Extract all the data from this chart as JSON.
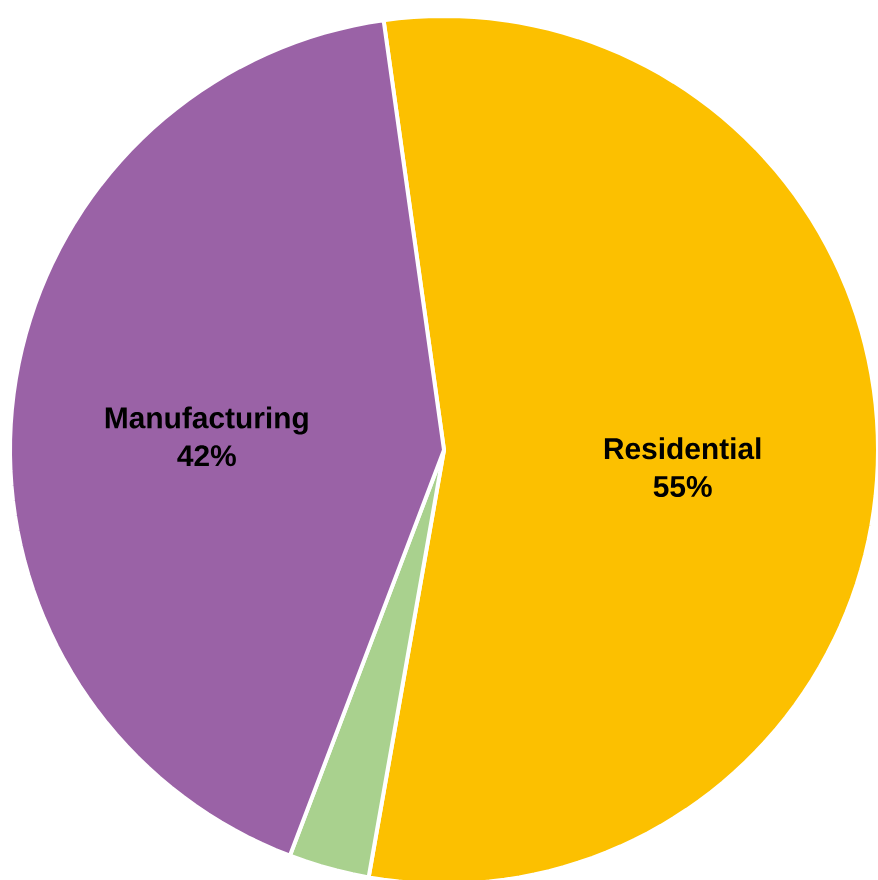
{
  "chart_data": {
    "type": "pie",
    "categories": [
      "Residential",
      null,
      "Manufacturing"
    ],
    "values": [
      55,
      3,
      42
    ],
    "colors": [
      "#fcc000",
      "#a9d18e",
      "#9a62a6"
    ],
    "value_labels": [
      "55%",
      null,
      "42%"
    ]
  }
}
